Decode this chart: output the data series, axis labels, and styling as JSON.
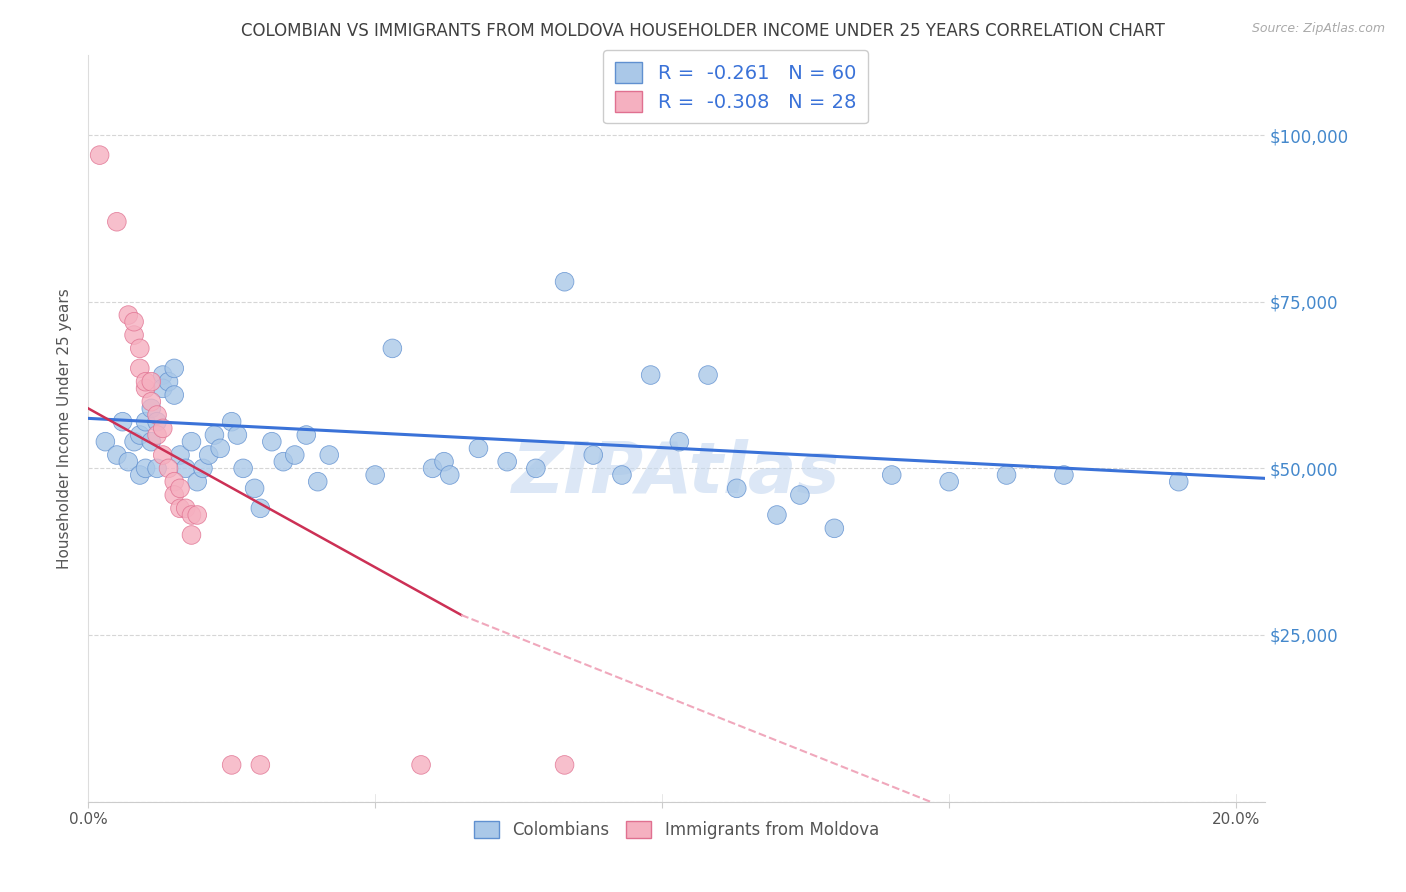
{
  "title": "COLOMBIAN VS IMMIGRANTS FROM MOLDOVA HOUSEHOLDER INCOME UNDER 25 YEARS CORRELATION CHART",
  "source": "Source: ZipAtlas.com",
  "ylabel": "Householder Income Under 25 years",
  "xlim": [
    0.0,
    0.205
  ],
  "ylim": [
    0,
    112000
  ],
  "yticks": [
    0,
    25000,
    50000,
    75000,
    100000
  ],
  "ytick_labels_right": [
    "",
    "$25,000",
    "$50,000",
    "$75,000",
    "$100,000"
  ],
  "xticks": [
    0.0,
    0.05,
    0.1,
    0.15,
    0.2
  ],
  "xtick_labels": [
    "0.0%",
    "",
    "",
    "",
    "20.0%"
  ],
  "r_blue": -0.261,
  "n_blue": 60,
  "r_pink": -0.308,
  "n_pink": 28,
  "legend_labels": [
    "Colombians",
    "Immigrants from Moldova"
  ],
  "blue_fill_color": "#aac8e8",
  "pink_fill_color": "#f5b0c0",
  "blue_edge_color": "#6090d0",
  "pink_edge_color": "#e07090",
  "blue_line_color": "#3a72d8",
  "pink_line_color": "#cc3055",
  "pink_dashed_color": "#f0a8bc",
  "grid_color": "#cccccc",
  "title_color": "#404040",
  "right_axis_color": "#4488cc",
  "watermark_color": "#c5d8f0",
  "blue_points": [
    [
      0.003,
      54000
    ],
    [
      0.005,
      52000
    ],
    [
      0.006,
      57000
    ],
    [
      0.007,
      51000
    ],
    [
      0.008,
      54000
    ],
    [
      0.009,
      55000
    ],
    [
      0.009,
      49000
    ],
    [
      0.01,
      57000
    ],
    [
      0.01,
      50000
    ],
    [
      0.011,
      54000
    ],
    [
      0.011,
      59000
    ],
    [
      0.012,
      57000
    ],
    [
      0.012,
      50000
    ],
    [
      0.013,
      64000
    ],
    [
      0.013,
      62000
    ],
    [
      0.014,
      63000
    ],
    [
      0.015,
      61000
    ],
    [
      0.015,
      65000
    ],
    [
      0.016,
      52000
    ],
    [
      0.017,
      50000
    ],
    [
      0.018,
      54000
    ],
    [
      0.019,
      48000
    ],
    [
      0.02,
      50000
    ],
    [
      0.021,
      52000
    ],
    [
      0.022,
      55000
    ],
    [
      0.023,
      53000
    ],
    [
      0.025,
      57000
    ],
    [
      0.026,
      55000
    ],
    [
      0.027,
      50000
    ],
    [
      0.029,
      47000
    ],
    [
      0.03,
      44000
    ],
    [
      0.032,
      54000
    ],
    [
      0.034,
      51000
    ],
    [
      0.036,
      52000
    ],
    [
      0.038,
      55000
    ],
    [
      0.04,
      48000
    ],
    [
      0.042,
      52000
    ],
    [
      0.05,
      49000
    ],
    [
      0.053,
      68000
    ],
    [
      0.06,
      50000
    ],
    [
      0.062,
      51000
    ],
    [
      0.063,
      49000
    ],
    [
      0.068,
      53000
    ],
    [
      0.073,
      51000
    ],
    [
      0.078,
      50000
    ],
    [
      0.083,
      78000
    ],
    [
      0.088,
      52000
    ],
    [
      0.093,
      49000
    ],
    [
      0.098,
      64000
    ],
    [
      0.103,
      54000
    ],
    [
      0.108,
      64000
    ],
    [
      0.113,
      47000
    ],
    [
      0.12,
      43000
    ],
    [
      0.124,
      46000
    ],
    [
      0.13,
      41000
    ],
    [
      0.14,
      49000
    ],
    [
      0.15,
      48000
    ],
    [
      0.16,
      49000
    ],
    [
      0.17,
      49000
    ],
    [
      0.19,
      48000
    ]
  ],
  "pink_points": [
    [
      0.002,
      97000
    ],
    [
      0.005,
      87000
    ],
    [
      0.007,
      73000
    ],
    [
      0.008,
      70000
    ],
    [
      0.008,
      72000
    ],
    [
      0.009,
      68000
    ],
    [
      0.009,
      65000
    ],
    [
      0.01,
      62000
    ],
    [
      0.01,
      63000
    ],
    [
      0.011,
      60000
    ],
    [
      0.011,
      63000
    ],
    [
      0.012,
      58000
    ],
    [
      0.012,
      55000
    ],
    [
      0.013,
      56000
    ],
    [
      0.013,
      52000
    ],
    [
      0.014,
      50000
    ],
    [
      0.015,
      48000
    ],
    [
      0.015,
      46000
    ],
    [
      0.016,
      44000
    ],
    [
      0.016,
      47000
    ],
    [
      0.017,
      44000
    ],
    [
      0.018,
      43000
    ],
    [
      0.018,
      40000
    ],
    [
      0.019,
      43000
    ],
    [
      0.025,
      5500
    ],
    [
      0.03,
      5500
    ],
    [
      0.058,
      5500
    ],
    [
      0.083,
      5500
    ]
  ],
  "blue_trendline": [
    [
      0.0,
      57500
    ],
    [
      0.205,
      48500
    ]
  ],
  "pink_solid_line": [
    [
      0.0,
      59000
    ],
    [
      0.065,
      28000
    ]
  ],
  "pink_dashed_line": [
    [
      0.065,
      28000
    ],
    [
      0.205,
      -20000
    ]
  ]
}
